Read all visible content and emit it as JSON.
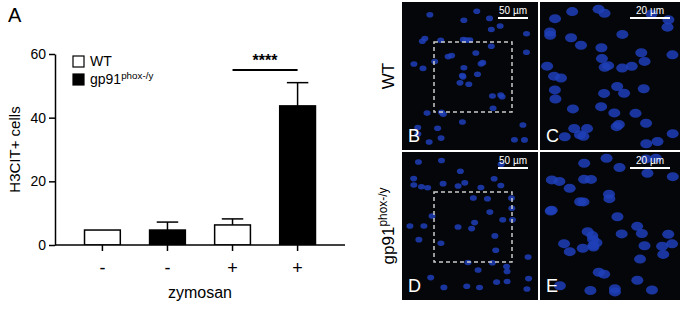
{
  "chart_data": {
    "type": "bar",
    "title": "A",
    "categories": [
      "-",
      "-",
      "+",
      "+"
    ],
    "x_label": "zymosan",
    "y_label": "H3CIT+ cells",
    "series": [
      {
        "name": "WT",
        "color": "#ffffff",
        "values": [
          4.7,
          null,
          6.3,
          null
        ],
        "errors": [
          null,
          null,
          1.9,
          null
        ]
      },
      {
        "name": "gp91phox-/y",
        "color": "#000000",
        "values": [
          null,
          4.7,
          null,
          43.7
        ],
        "errors": [
          null,
          2.5,
          null,
          7.3
        ]
      }
    ],
    "ylim": [
      0,
      60
    ],
    "yticks": [
      0,
      20,
      40,
      60
    ],
    "grid": false,
    "legend": "top-left",
    "annotations": [
      {
        "text": "****",
        "from": 2,
        "to": 3,
        "y": 55
      }
    ]
  },
  "images": {
    "row_labels": [
      "WT",
      "gp91phox-/y"
    ],
    "panels": [
      {
        "label": "B",
        "scale_bar": "50 µm"
      },
      {
        "label": "C",
        "scale_bar": "20 µm"
      },
      {
        "label": "D",
        "scale_bar": "50 µm"
      },
      {
        "label": "E",
        "scale_bar": "20 µm"
      }
    ]
  }
}
